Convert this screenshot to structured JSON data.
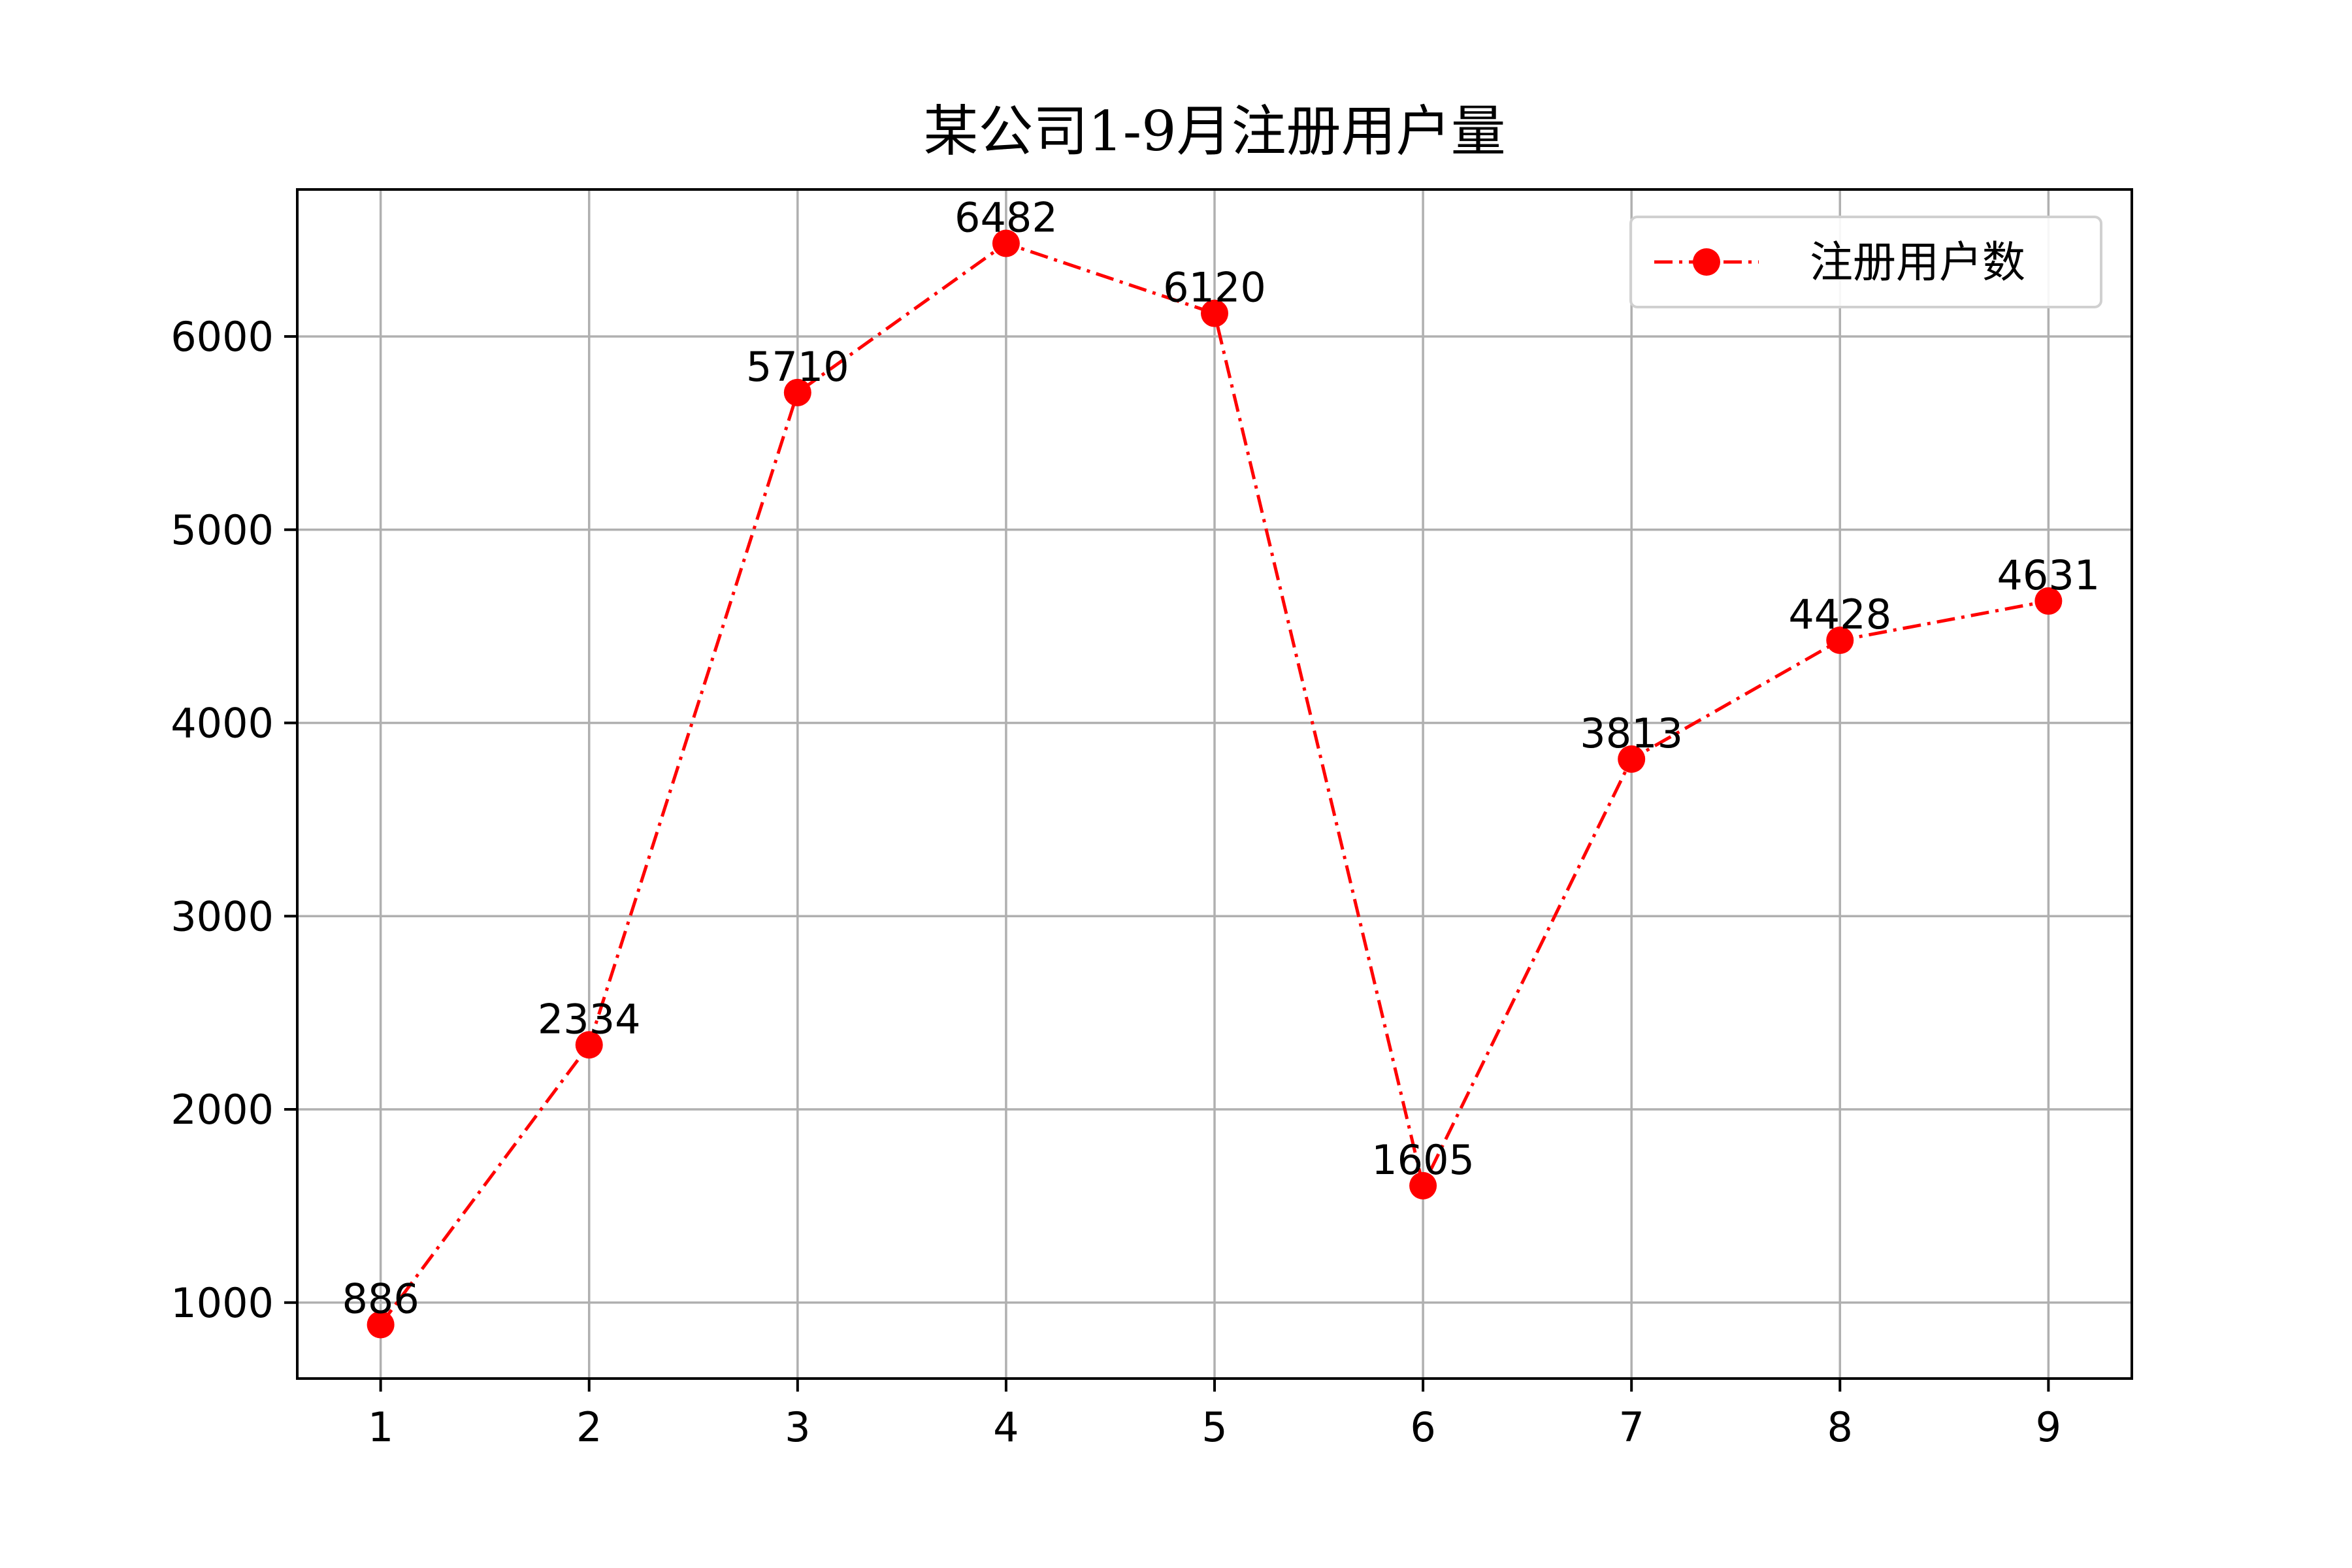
{
  "chart_data": {
    "type": "line",
    "title": "某公司1-9月注册用户量",
    "xlabel": "",
    "ylabel": "",
    "x": [
      1,
      2,
      3,
      4,
      5,
      6,
      7,
      8,
      9
    ],
    "x_ticks": [
      "1",
      "2",
      "3",
      "4",
      "5",
      "6",
      "7",
      "8",
      "9"
    ],
    "y_ticks": [
      1000,
      2000,
      3000,
      4000,
      5000,
      6000
    ],
    "xlim": [
      0.6,
      9.4
    ],
    "ylim": [
      607,
      6761
    ],
    "grid": true,
    "legend_position": "top-right",
    "series": [
      {
        "name": "注册用户数",
        "values": [
          886,
          2334,
          5710,
          6482,
          6120,
          1605,
          3813,
          4428,
          4631
        ],
        "color": "#ff0000",
        "line_style": "dash-dot",
        "marker": "circle"
      }
    ]
  }
}
